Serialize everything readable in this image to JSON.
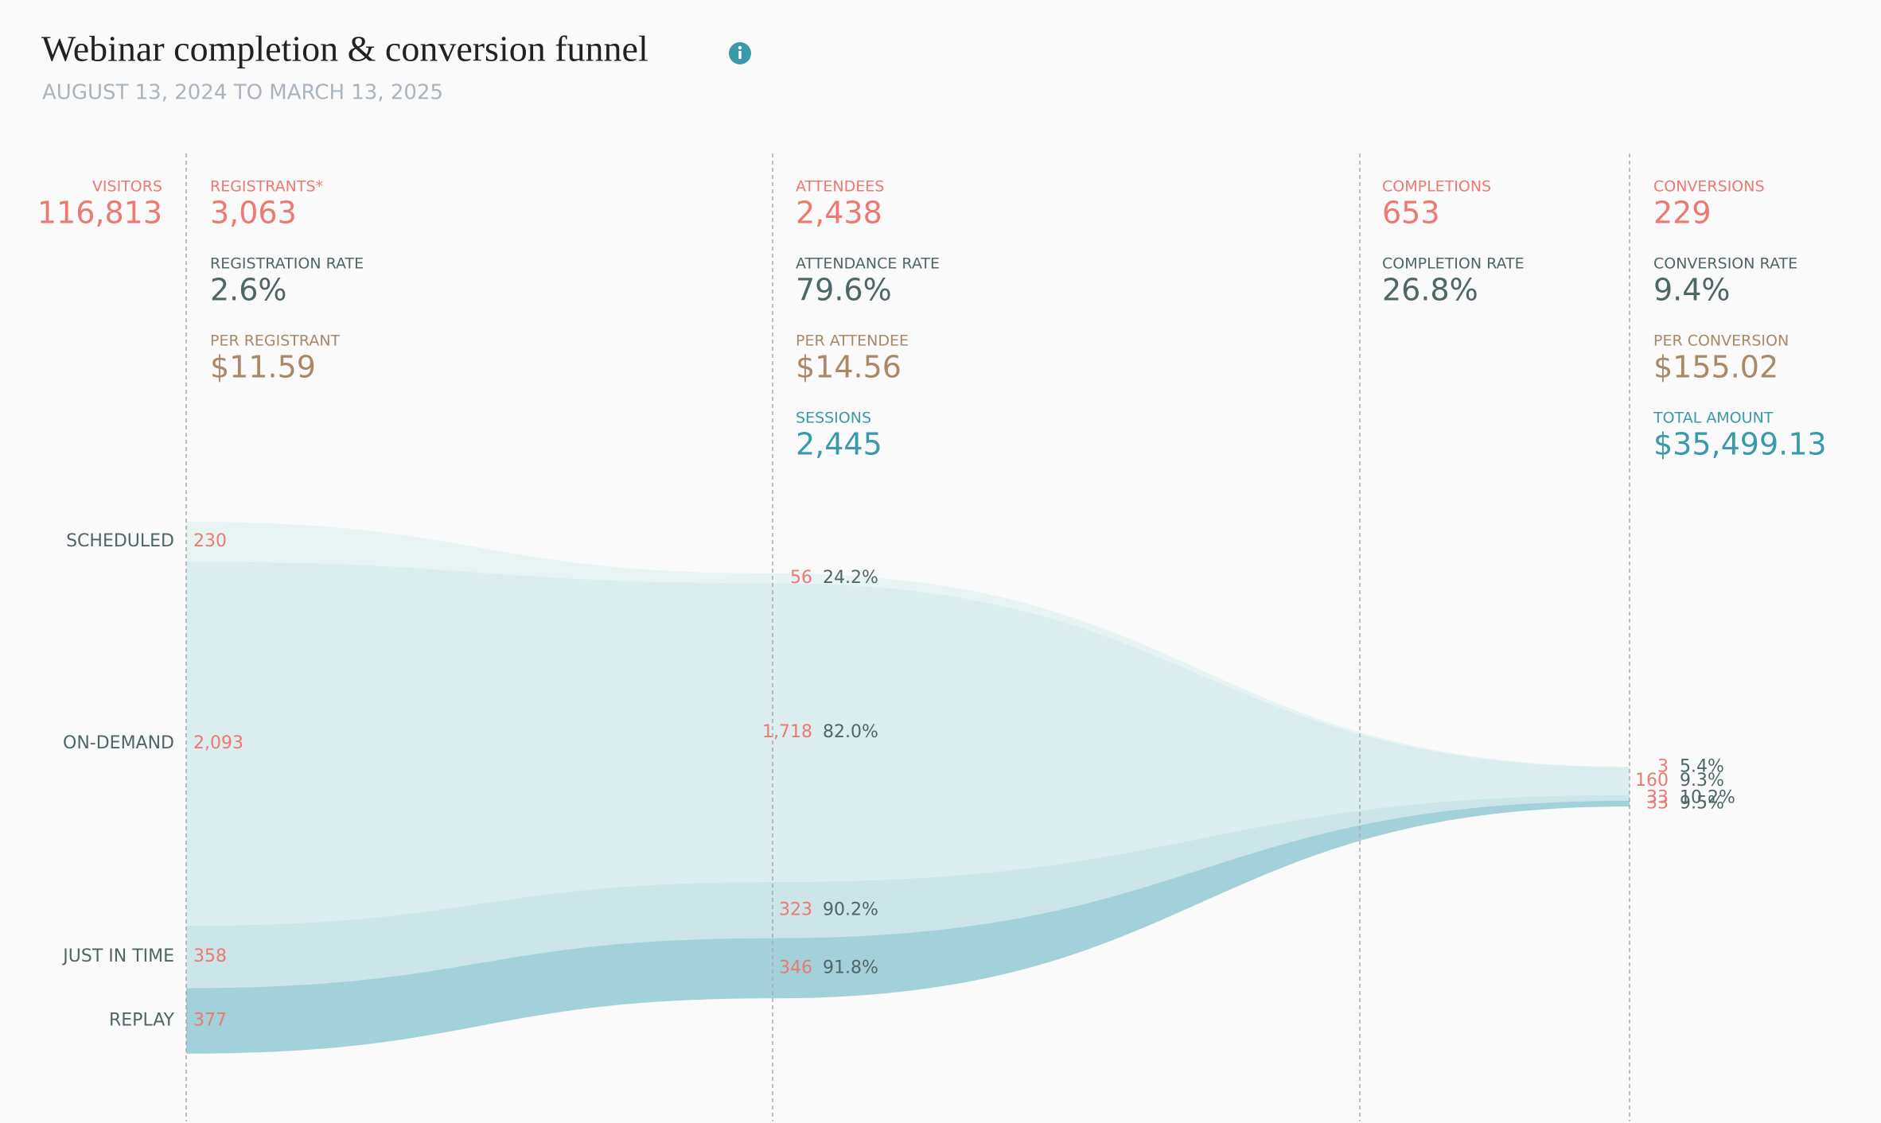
{
  "header": {
    "title": "Webinar completion & conversion funnel",
    "subtitle": "AUGUST 13, 2024 TO MARCH 13, 2025"
  },
  "visitors": {
    "label": "VISITORS",
    "value": "116,813"
  },
  "columns": [
    {
      "metrics": [
        {
          "label": "REGISTRANTS*",
          "value": "3,063"
        },
        {
          "label": "REGISTRATION RATE",
          "value": "2.6%"
        },
        {
          "label": "PER REGISTRANT",
          "value": "$11.59"
        }
      ]
    },
    {
      "metrics": [
        {
          "label": "ATTENDEES",
          "value": "2,438"
        },
        {
          "label": "ATTENDANCE RATE",
          "value": "79.6%"
        },
        {
          "label": "PER ATTENDEE",
          "value": "$14.56"
        },
        {
          "label": "SESSIONS",
          "value": "2,445"
        }
      ]
    },
    {
      "metrics": [
        {
          "label": "COMPLETIONS",
          "value": "653"
        },
        {
          "label": "COMPLETION RATE",
          "value": "26.8%"
        }
      ]
    },
    {
      "metrics": [
        {
          "label": "CONVERSIONS",
          "value": "229"
        },
        {
          "label": "CONVERSION RATE",
          "value": "9.4%"
        },
        {
          "label": "PER CONVERSION",
          "value": "$155.02"
        },
        {
          "label": "TOTAL AMOUNT",
          "value": "$35,499.13"
        }
      ]
    }
  ],
  "flows": {
    "names": [
      "SCHEDULED",
      "ON-DEMAND",
      "JUST IN TIME",
      "REPLAY"
    ],
    "colors": [
      "#e8f3f4",
      "#dcedf0",
      "#cbe5e9",
      "#a3d1d9"
    ],
    "registrants": {
      "values": [
        230,
        2093,
        358,
        377
      ],
      "value_labels": [
        "230",
        "2,093",
        "358",
        "377"
      ]
    },
    "attendees": {
      "values": [
        56,
        1718,
        323,
        346
      ],
      "value_labels": [
        "56",
        "1,718",
        "323",
        "346"
      ],
      "rates": [
        "24.2%",
        "82.0%",
        "90.2%",
        "91.8%"
      ]
    },
    "conversions": {
      "values": [
        3,
        160,
        33,
        33
      ],
      "rates": [
        "5.4%",
        "9.3%",
        "10.2%",
        "9.5%"
      ]
    }
  }
}
